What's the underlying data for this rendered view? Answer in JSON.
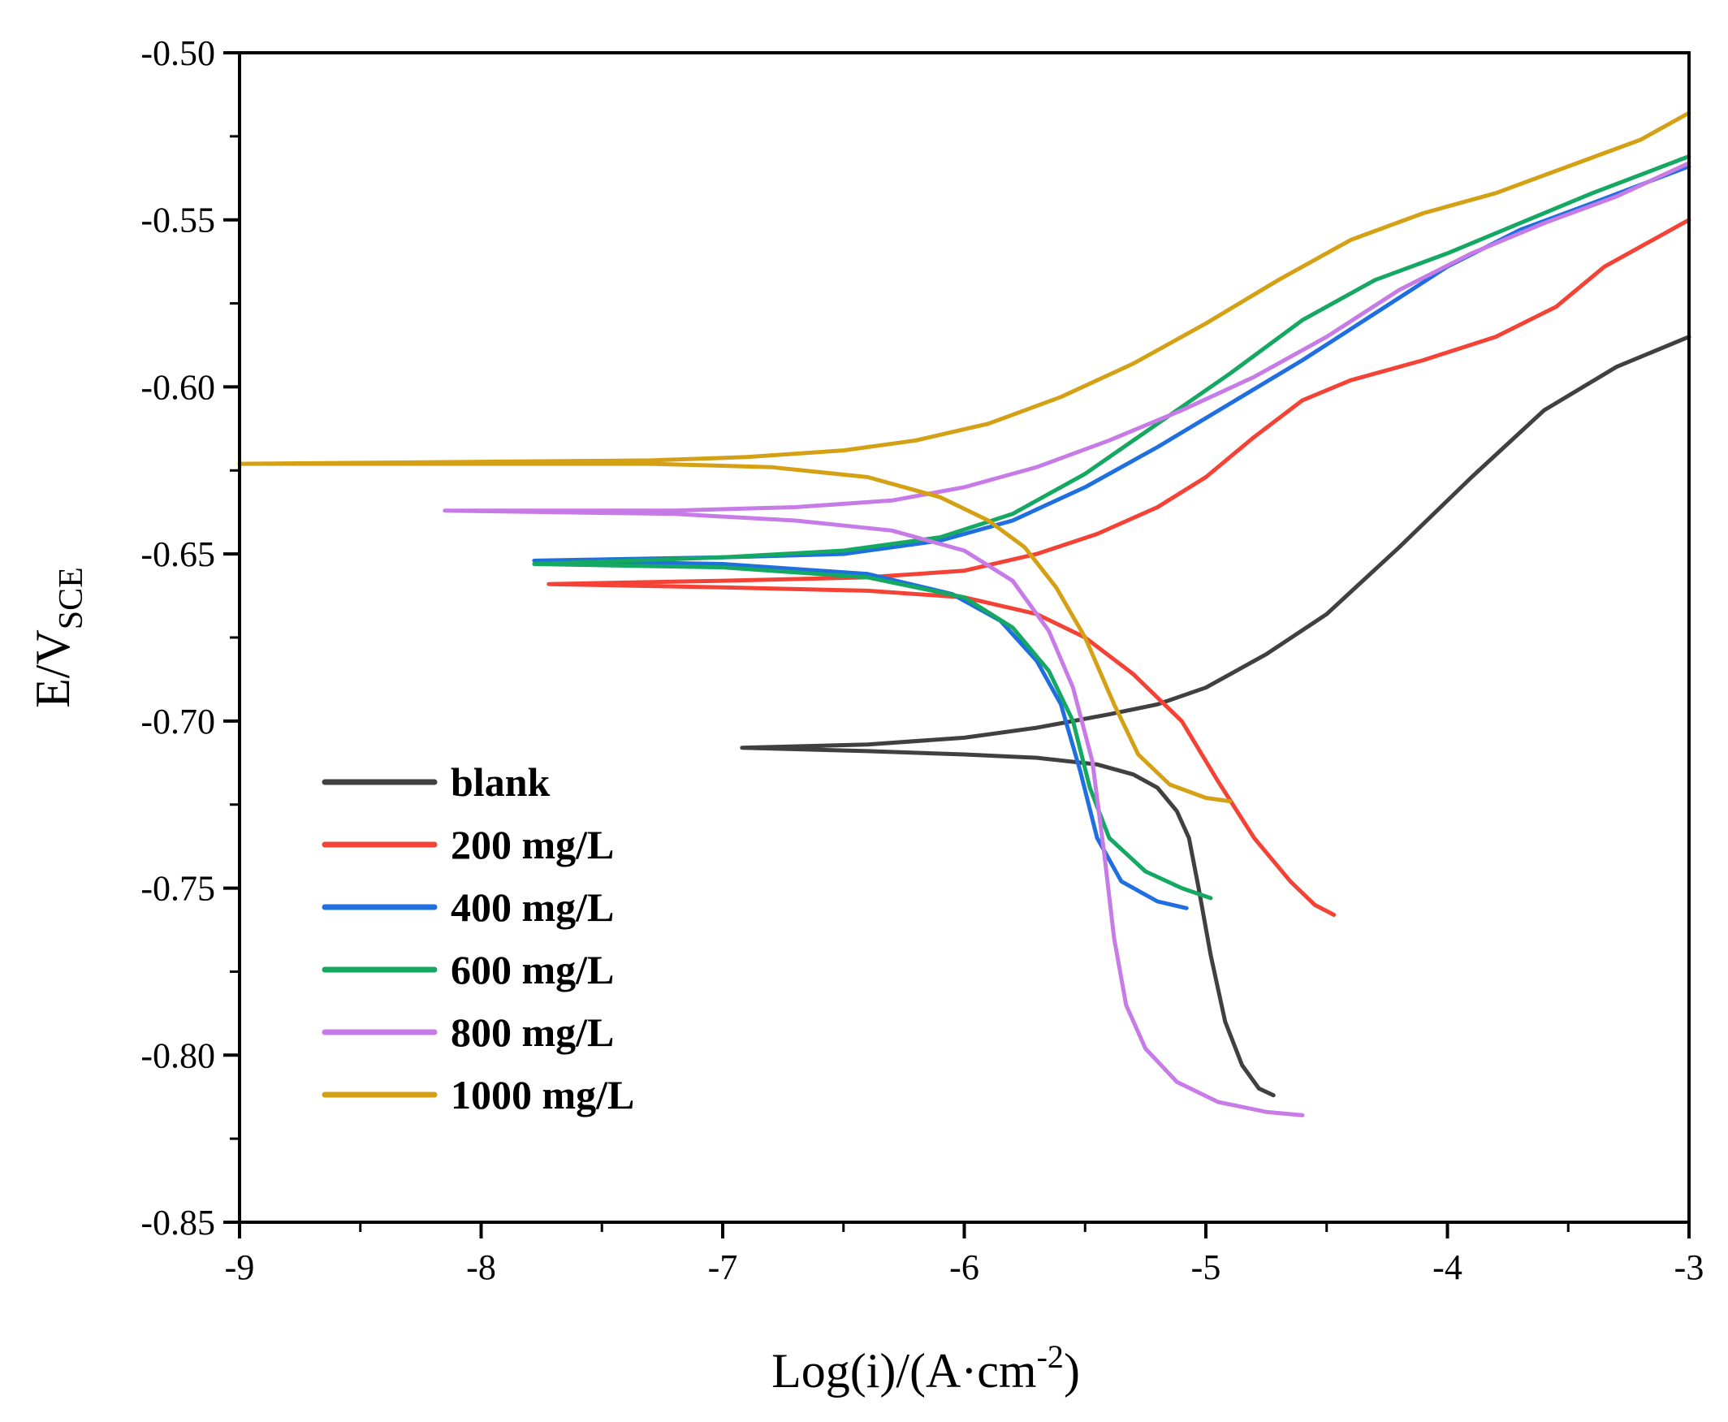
{
  "chart_data": {
    "type": "line",
    "title": "",
    "xlabel": {
      "main": "Log(i)/(A·cm",
      "sup": "-2",
      "close": ")"
    },
    "ylabel": {
      "main": "E/V",
      "sub": "SCE"
    },
    "xlim": [
      -9,
      -3
    ],
    "ylim": [
      -0.85,
      -0.5
    ],
    "xticks": [
      -9,
      -8,
      -7,
      -6,
      -5,
      -4,
      -3
    ],
    "xtick_labels": [
      "-9",
      "-8",
      "-7",
      "-6",
      "-5",
      "-4",
      "-3"
    ],
    "yticks": [
      -0.85,
      -0.8,
      -0.75,
      -0.7,
      -0.65,
      -0.6,
      -0.55,
      -0.5
    ],
    "ytick_labels": [
      "-0.85",
      "-0.80",
      "-0.75",
      "-0.70",
      "-0.65",
      "-0.60",
      "-0.55",
      "-0.50"
    ],
    "grid": false,
    "legend_position": "lower-left",
    "series": [
      {
        "name": "blank",
        "color": "#404040",
        "points": [
          [
            -4.72,
            -0.812
          ],
          [
            -4.78,
            -0.81
          ],
          [
            -4.85,
            -0.803
          ],
          [
            -4.92,
            -0.79
          ],
          [
            -4.98,
            -0.77
          ],
          [
            -5.03,
            -0.75
          ],
          [
            -5.07,
            -0.735
          ],
          [
            -5.12,
            -0.727
          ],
          [
            -5.2,
            -0.72
          ],
          [
            -5.3,
            -0.716
          ],
          [
            -5.45,
            -0.713
          ],
          [
            -5.7,
            -0.711
          ],
          [
            -6.0,
            -0.71
          ],
          [
            -6.4,
            -0.709
          ],
          [
            -6.92,
            -0.708
          ],
          [
            -6.4,
            -0.707
          ],
          [
            -6.0,
            -0.705
          ],
          [
            -5.7,
            -0.702
          ],
          [
            -5.4,
            -0.698
          ],
          [
            -5.2,
            -0.695
          ],
          [
            -5.0,
            -0.69
          ],
          [
            -4.75,
            -0.68
          ],
          [
            -4.5,
            -0.668
          ],
          [
            -4.2,
            -0.648
          ],
          [
            -3.9,
            -0.627
          ],
          [
            -3.6,
            -0.607
          ],
          [
            -3.3,
            -0.594
          ],
          [
            -3.0,
            -0.585
          ]
        ]
      },
      {
        "name": "200 mg/L",
        "color": "#f44336",
        "points": [
          [
            -4.47,
            -0.758
          ],
          [
            -4.55,
            -0.755
          ],
          [
            -4.65,
            -0.748
          ],
          [
            -4.8,
            -0.735
          ],
          [
            -4.95,
            -0.718
          ],
          [
            -5.1,
            -0.7
          ],
          [
            -5.3,
            -0.686
          ],
          [
            -5.5,
            -0.675
          ],
          [
            -5.7,
            -0.668
          ],
          [
            -6.0,
            -0.663
          ],
          [
            -6.4,
            -0.661
          ],
          [
            -7.0,
            -0.66
          ],
          [
            -7.72,
            -0.659
          ],
          [
            -7.0,
            -0.658
          ],
          [
            -6.4,
            -0.657
          ],
          [
            -6.0,
            -0.655
          ],
          [
            -5.7,
            -0.65
          ],
          [
            -5.45,
            -0.644
          ],
          [
            -5.2,
            -0.636
          ],
          [
            -5.0,
            -0.627
          ],
          [
            -4.8,
            -0.615
          ],
          [
            -4.6,
            -0.604
          ],
          [
            -4.4,
            -0.598
          ],
          [
            -4.1,
            -0.592
          ],
          [
            -3.8,
            -0.585
          ],
          [
            -3.55,
            -0.576
          ],
          [
            -3.35,
            -0.564
          ],
          [
            -3.15,
            -0.556
          ],
          [
            -3.0,
            -0.55
          ]
        ]
      },
      {
        "name": "400 mg/L",
        "color": "#1f6fe0",
        "points": [
          [
            -5.08,
            -0.756
          ],
          [
            -5.2,
            -0.754
          ],
          [
            -5.35,
            -0.748
          ],
          [
            -5.45,
            -0.735
          ],
          [
            -5.52,
            -0.715
          ],
          [
            -5.6,
            -0.695
          ],
          [
            -5.7,
            -0.682
          ],
          [
            -5.85,
            -0.67
          ],
          [
            -6.05,
            -0.662
          ],
          [
            -6.4,
            -0.656
          ],
          [
            -7.0,
            -0.653
          ],
          [
            -7.78,
            -0.652
          ],
          [
            -7.0,
            -0.651
          ],
          [
            -6.5,
            -0.65
          ],
          [
            -6.1,
            -0.646
          ],
          [
            -5.8,
            -0.64
          ],
          [
            -5.5,
            -0.63
          ],
          [
            -5.2,
            -0.618
          ],
          [
            -4.9,
            -0.605
          ],
          [
            -4.6,
            -0.592
          ],
          [
            -4.3,
            -0.578
          ],
          [
            -4.0,
            -0.564
          ],
          [
            -3.7,
            -0.553
          ],
          [
            -3.4,
            -0.545
          ],
          [
            -3.0,
            -0.534
          ]
        ]
      },
      {
        "name": "600 mg/L",
        "color": "#15a862",
        "points": [
          [
            -4.98,
            -0.753
          ],
          [
            -5.1,
            -0.75
          ],
          [
            -5.25,
            -0.745
          ],
          [
            -5.4,
            -0.735
          ],
          [
            -5.48,
            -0.72
          ],
          [
            -5.55,
            -0.7
          ],
          [
            -5.65,
            -0.685
          ],
          [
            -5.8,
            -0.672
          ],
          [
            -6.0,
            -0.663
          ],
          [
            -6.4,
            -0.657
          ],
          [
            -7.0,
            -0.654
          ],
          [
            -7.78,
            -0.653
          ],
          [
            -7.0,
            -0.651
          ],
          [
            -6.5,
            -0.649
          ],
          [
            -6.1,
            -0.645
          ],
          [
            -5.8,
            -0.638
          ],
          [
            -5.5,
            -0.626
          ],
          [
            -5.2,
            -0.611
          ],
          [
            -4.9,
            -0.596
          ],
          [
            -4.6,
            -0.58
          ],
          [
            -4.3,
            -0.568
          ],
          [
            -4.0,
            -0.56
          ],
          [
            -3.7,
            -0.551
          ],
          [
            -3.4,
            -0.542
          ],
          [
            -3.0,
            -0.531
          ]
        ]
      },
      {
        "name": "800 mg/L",
        "color": "#c77be6",
        "points": [
          [
            -4.6,
            -0.818
          ],
          [
            -4.75,
            -0.817
          ],
          [
            -4.95,
            -0.814
          ],
          [
            -5.12,
            -0.808
          ],
          [
            -5.25,
            -0.798
          ],
          [
            -5.33,
            -0.785
          ],
          [
            -5.38,
            -0.765
          ],
          [
            -5.42,
            -0.74
          ],
          [
            -5.47,
            -0.712
          ],
          [
            -5.55,
            -0.69
          ],
          [
            -5.65,
            -0.673
          ],
          [
            -5.8,
            -0.658
          ],
          [
            -6.0,
            -0.649
          ],
          [
            -6.3,
            -0.643
          ],
          [
            -6.7,
            -0.64
          ],
          [
            -7.2,
            -0.638
          ],
          [
            -8.15,
            -0.637
          ],
          [
            -7.2,
            -0.637
          ],
          [
            -6.7,
            -0.636
          ],
          [
            -6.3,
            -0.634
          ],
          [
            -6.0,
            -0.63
          ],
          [
            -5.7,
            -0.624
          ],
          [
            -5.4,
            -0.616
          ],
          [
            -5.1,
            -0.607
          ],
          [
            -4.8,
            -0.597
          ],
          [
            -4.5,
            -0.585
          ],
          [
            -4.2,
            -0.571
          ],
          [
            -3.9,
            -0.56
          ],
          [
            -3.6,
            -0.551
          ],
          [
            -3.3,
            -0.543
          ],
          [
            -3.0,
            -0.533
          ]
        ]
      },
      {
        "name": "1000 mg/L",
        "color": "#d4a014",
        "points": [
          [
            -4.9,
            -0.724
          ],
          [
            -5.0,
            -0.723
          ],
          [
            -5.15,
            -0.719
          ],
          [
            -5.28,
            -0.71
          ],
          [
            -5.38,
            -0.695
          ],
          [
            -5.5,
            -0.675
          ],
          [
            -5.62,
            -0.66
          ],
          [
            -5.75,
            -0.648
          ],
          [
            -5.9,
            -0.64
          ],
          [
            -6.1,
            -0.633
          ],
          [
            -6.4,
            -0.627
          ],
          [
            -6.8,
            -0.624
          ],
          [
            -7.3,
            -0.623
          ],
          [
            -9.0,
            -0.623
          ],
          [
            -7.3,
            -0.622
          ],
          [
            -6.9,
            -0.621
          ],
          [
            -6.5,
            -0.619
          ],
          [
            -6.2,
            -0.616
          ],
          [
            -5.9,
            -0.611
          ],
          [
            -5.6,
            -0.603
          ],
          [
            -5.3,
            -0.593
          ],
          [
            -5.0,
            -0.581
          ],
          [
            -4.7,
            -0.568
          ],
          [
            -4.4,
            -0.556
          ],
          [
            -4.1,
            -0.548
          ],
          [
            -3.8,
            -0.542
          ],
          [
            -3.5,
            -0.534
          ],
          [
            -3.2,
            -0.526
          ],
          [
            -3.0,
            -0.518
          ]
        ]
      }
    ]
  }
}
